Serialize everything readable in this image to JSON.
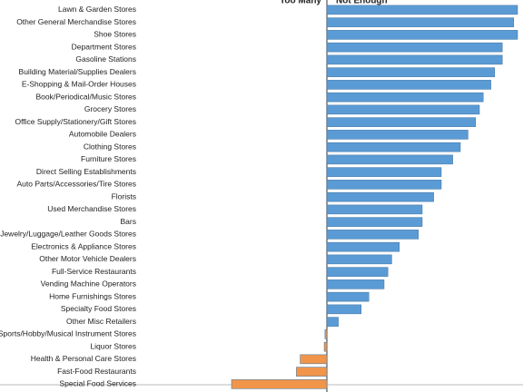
{
  "chart_data": {
    "type": "bar",
    "orientation": "horizontal",
    "categories": [
      "Lawn & Garden Stores",
      "Other General Merchandise Stores",
      "Shoe Stores",
      "Department Stores",
      "Gasoline Stations",
      "Building Material/Supplies Dealers",
      "E-Shopping & Mail-Order Houses",
      "Book/Periodical/Music Stores",
      "Grocery Stores",
      "Office Supply/Stationery/Gift Stores",
      "Automobile Dealers",
      "Clothing Stores",
      "Furniture Stores",
      "Direct Selling Establishments",
      "Auto Parts/Accessories/Tire Stores",
      "Florists",
      "Used Merchandise Stores",
      "Bars",
      "Jewelry/Luggage/Leather Goods Stores",
      "Electronics & Appliance Stores",
      "Other Motor Vehicle Dealers",
      "Full-Service Restaurants",
      "Vending Machine Operators",
      "Home Furnishings Stores",
      "Specialty Food Stores",
      "Other Misc Retailers",
      "Sports/Hobby/Musical Instrument Stores",
      "Liquor Stores",
      "Health & Personal Care Stores",
      "Fast-Food Restaurants",
      "Special Food Services"
    ],
    "series": [
      {
        "name": "Too Many",
        "color": "#f0954a",
        "values": [
          null,
          null,
          null,
          null,
          null,
          null,
          null,
          null,
          null,
          null,
          null,
          null,
          null,
          null,
          null,
          null,
          null,
          null,
          null,
          null,
          null,
          null,
          null,
          null,
          null,
          null,
          -0.5,
          -0.7,
          -7,
          -8,
          -25
        ]
      },
      {
        "name": "Not Enough",
        "color": "#5b9bd5",
        "values": [
          50,
          49,
          50,
          46,
          46,
          44,
          43,
          41,
          40,
          39,
          37,
          35,
          33,
          30,
          30,
          28,
          25,
          25,
          24,
          19,
          17,
          16,
          15,
          11,
          9,
          3,
          null,
          null,
          null,
          null,
          null
        ]
      }
    ],
    "xlim": [
      -50,
      50
    ]
  }
}
